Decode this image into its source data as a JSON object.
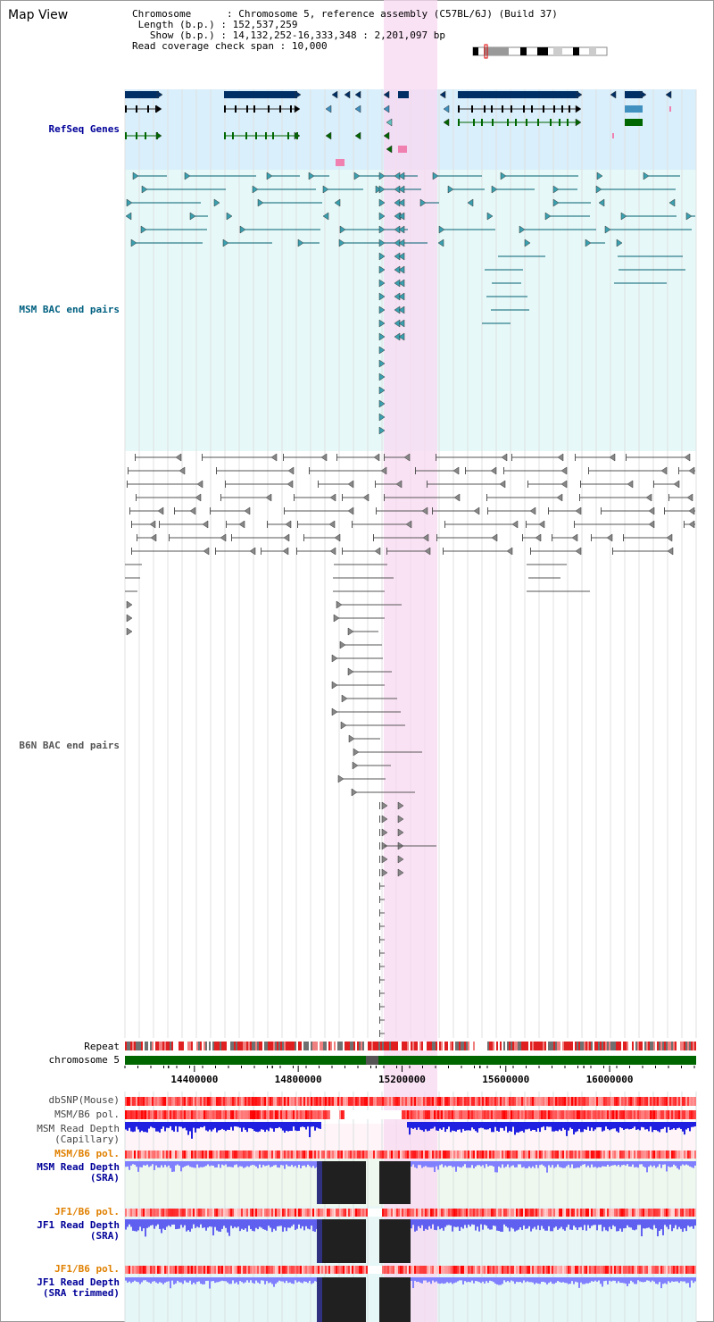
{
  "app_title": "Map View",
  "info": {
    "chromosome_key": "Chromosome",
    "chromosome_value": "Chromosome 5, reference assembly (C57BL/6J) (Build 37)",
    "length_key": "Length (b.p.)",
    "length_value": "152,537,259",
    "show_key": "Show (b.p.)",
    "show_value": "14,132,252-16,333,348 : 2,201,097 bp",
    "coverage_key": "Read coverage check span",
    "coverage_value": "10,000"
  },
  "tracks": {
    "refseq_label": "RefSeq Genes",
    "msm_bac_label": "MSM BAC end pairs",
    "b6n_bac_label": "B6N BAC end pairs",
    "repeat_label": "Repeat",
    "chromosome_label": "chromosome 5",
    "dbsnp_label": "dbSNP(Mouse)",
    "msm_b6_pol_label": "MSM/B6 pol.",
    "msm_depth_cap_label": "MSM Read Depth",
    "msm_depth_cap_sub": "(Capillary)",
    "msm_b6_pol2_label": "MSM/B6 pol.",
    "msm_depth_sra_label": "MSM Read Depth",
    "msm_depth_sra_sub": "(SRA)",
    "jf1_b6_pol_label": "JF1/B6 pol.",
    "jf1_depth_sra_label": "JF1 Read Depth",
    "jf1_depth_sra_sub": "(SRA)",
    "jf1_b6_pol2_label": "JF1/B6 pol.",
    "jf1_depth_trim_label": "JF1 Read Depth",
    "jf1_depth_trim_sub": "(SRA trimmed)"
  },
  "axis": {
    "ticks": [
      "14400000",
      "14800000",
      "15200000",
      "15600000",
      "16000000"
    ],
    "tick_positions_bp": [
      14400000,
      14800000,
      15200000,
      15600000,
      16000000
    ]
  },
  "colors": {
    "refseq_bg": "#d9effb",
    "msm_bac_bg": "#e6f9f8",
    "highlight": "#f8d8f1",
    "gene_dark": "#002f66",
    "gene_green": "#006600",
    "msm_bac_line": "#006070",
    "b6n_line": "#555555",
    "chromosome_bar": "#006600",
    "depth_blue": "#2020e0",
    "depth_light": "#8080ff",
    "pol_red": "#ff2020",
    "label_blue": "#000099",
    "label_teal": "#006080",
    "label_orange": "#e08000"
  }
}
